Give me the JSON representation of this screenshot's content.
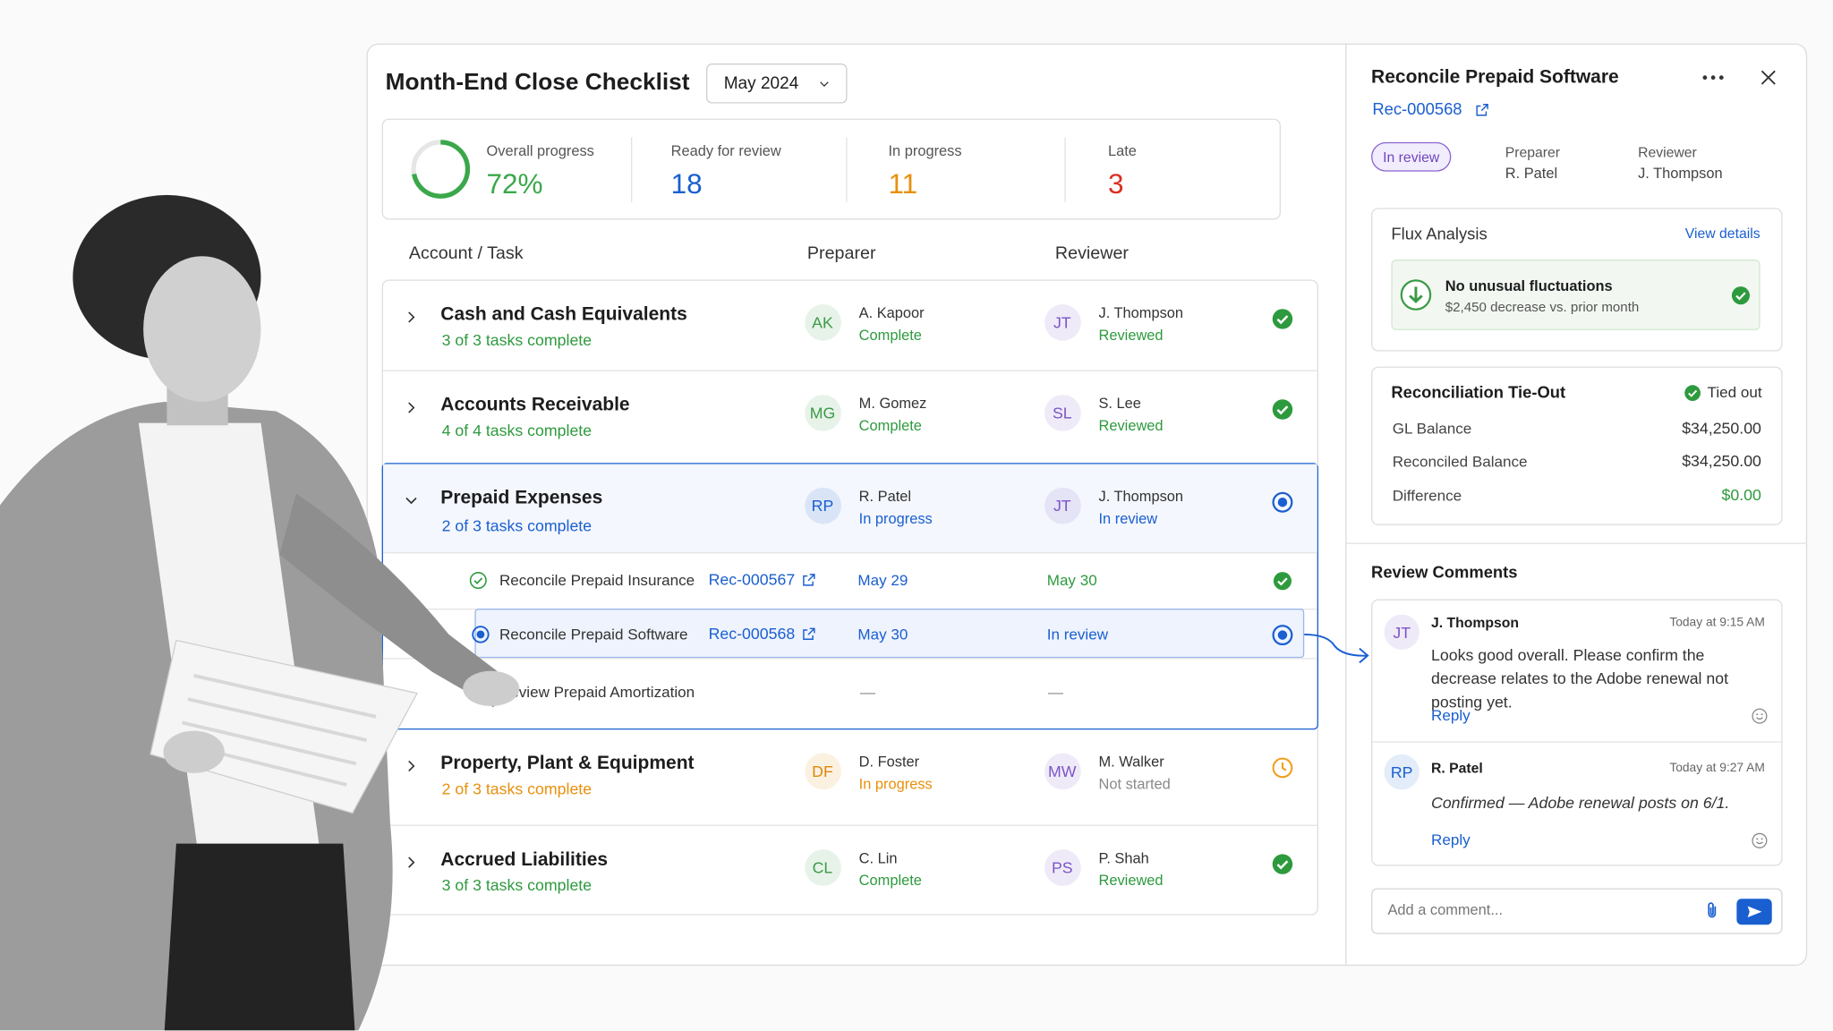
{
  "header": {
    "title": "Month-End Close Checklist",
    "period": "May 2024"
  },
  "summary": {
    "overall": {
      "caption": "Overall progress",
      "value": 72,
      "label": "72%"
    },
    "stats": [
      {
        "caption": "Ready for review",
        "value": 18,
        "color": "#1a5fd0"
      },
      {
        "caption": "In progress",
        "value": 11,
        "color": "#e8900c"
      },
      {
        "caption": "Late",
        "value": 3,
        "color": "#d93025"
      }
    ]
  },
  "table": {
    "columns": [
      "Account / Task",
      "Preparer",
      "Reviewer"
    ],
    "groups": [
      {
        "name": "Cash and Cash Equivalents",
        "progress": "3 of 3 tasks complete",
        "progress_color": "#2e9a3e",
        "preparer": {
          "initials": "AK",
          "name": "A. Kapoor",
          "status": "Complete",
          "color": "#3c9a46",
          "status_color": "#2e9a3e"
        },
        "reviewer": {
          "initials": "JT",
          "name": "J. Thompson",
          "status": "Reviewed",
          "color": "#7b55c7",
          "status_color": "#2e9a3e"
        }
      },
      {
        "name": "Accounts Receivable",
        "progress": "4 of 4 tasks complete",
        "progress_color": "#2e9a3e",
        "preparer": {
          "initials": "MG",
          "name": "M. Gomez",
          "status": "Complete",
          "color": "#3c9a46",
          "status_color": "#2e9a3e"
        },
        "reviewer": {
          "initials": "SL",
          "name": "S. Lee",
          "status": "Reviewed",
          "color": "#7b55c7",
          "status_color": "#2e9a3e"
        }
      },
      {
        "name": "Prepaid Expenses",
        "progress": "2 of 3 tasks complete",
        "progress_color": "#1a5fd0",
        "preparer": {
          "initials": "RP",
          "name": "R. Patel",
          "status": "In progress",
          "color": "#1a5fd0",
          "status_color": "#1a5fd0"
        },
        "reviewer": {
          "initials": "JT",
          "name": "J. Thompson",
          "status": "In review",
          "color": "#7b55c7",
          "status_color": "#1a5fd0"
        },
        "tasks": [
          {
            "name": "Reconcile Prepaid Insurance",
            "ref": "Rec-000567",
            "preparer": "May 29",
            "reviewer": "May 30",
            "preparer_color": "#1a5fd0",
            "reviewer_color": "#2e9a3e"
          },
          {
            "name": "Reconcile Prepaid Software",
            "ref": "Rec-000568",
            "preparer": "May 30",
            "reviewer": "In review",
            "preparer_color": "#1a5fd0",
            "reviewer_color": "#1a5fd0"
          },
          {
            "name": "Review Prepaid Amortization",
            "preparer": "—",
            "reviewer": "—",
            "preparer_color": "#888888",
            "reviewer_color": "#888888"
          }
        ]
      },
      {
        "name": "Property, Plant & Equipment",
        "progress": "2 of 3 tasks complete",
        "progress_color": "#e8900c",
        "preparer": {
          "initials": "DF",
          "name": "D. Foster",
          "status": "In progress",
          "color": "#e0880c",
          "status_color": "#e8900c"
        },
        "reviewer": {
          "initials": "MW",
          "name": "M. Walker",
          "status": "Not started",
          "color": "#7b55c7",
          "status_color": "#8a8a8a"
        }
      },
      {
        "name": "Accrued Liabilities",
        "progress": "3 of 3 tasks complete",
        "progress_color": "#2e9a3e",
        "preparer": {
          "initials": "CL",
          "name": "C. Lin",
          "status": "Complete",
          "color": "#3c9a46",
          "status_color": "#2e9a3e"
        },
        "reviewer": {
          "initials": "PS",
          "name": "P. Shah",
          "status": "Reviewed",
          "color": "#7b55c7",
          "status_color": "#2e9a3e"
        }
      }
    ]
  },
  "panel": {
    "title": "Reconcile Prepaid Software",
    "ref": "Rec-000568",
    "status": "In review",
    "preparer_label": "Preparer",
    "preparer": "R. Patel",
    "reviewer_label": "Reviewer",
    "reviewer": "J. Thompson",
    "flux": {
      "title": "Flux Analysis",
      "link": "View details",
      "headline": "No unusual fluctuations",
      "detail": "$2,450 decrease vs. prior month"
    },
    "tieout": {
      "title": "Reconciliation Tie-Out",
      "status": "Tied out",
      "rows": [
        [
          "GL Balance",
          "$34,250.00"
        ],
        [
          "Reconciled Balance",
          "$34,250.00"
        ],
        [
          "Difference",
          "$0.00"
        ]
      ]
    },
    "comments": {
      "title": "Review Comments",
      "items": [
        {
          "initials": "JT",
          "author": "J. Thompson",
          "time": "Today at 9:15 AM",
          "text": "Looks good overall. Please confirm the decrease relates to the Adobe renewal not posting yet.",
          "reply": "Reply",
          "color": "#7b55c7"
        },
        {
          "initials": "RP",
          "author": "R. Patel",
          "time": "Today at 9:27 AM",
          "text": "Confirmed — Adobe renewal posts on 6/1.",
          "reply": "Reply",
          "color": "#1a5fd0"
        }
      ],
      "placeholder": "Add a comment..."
    }
  }
}
